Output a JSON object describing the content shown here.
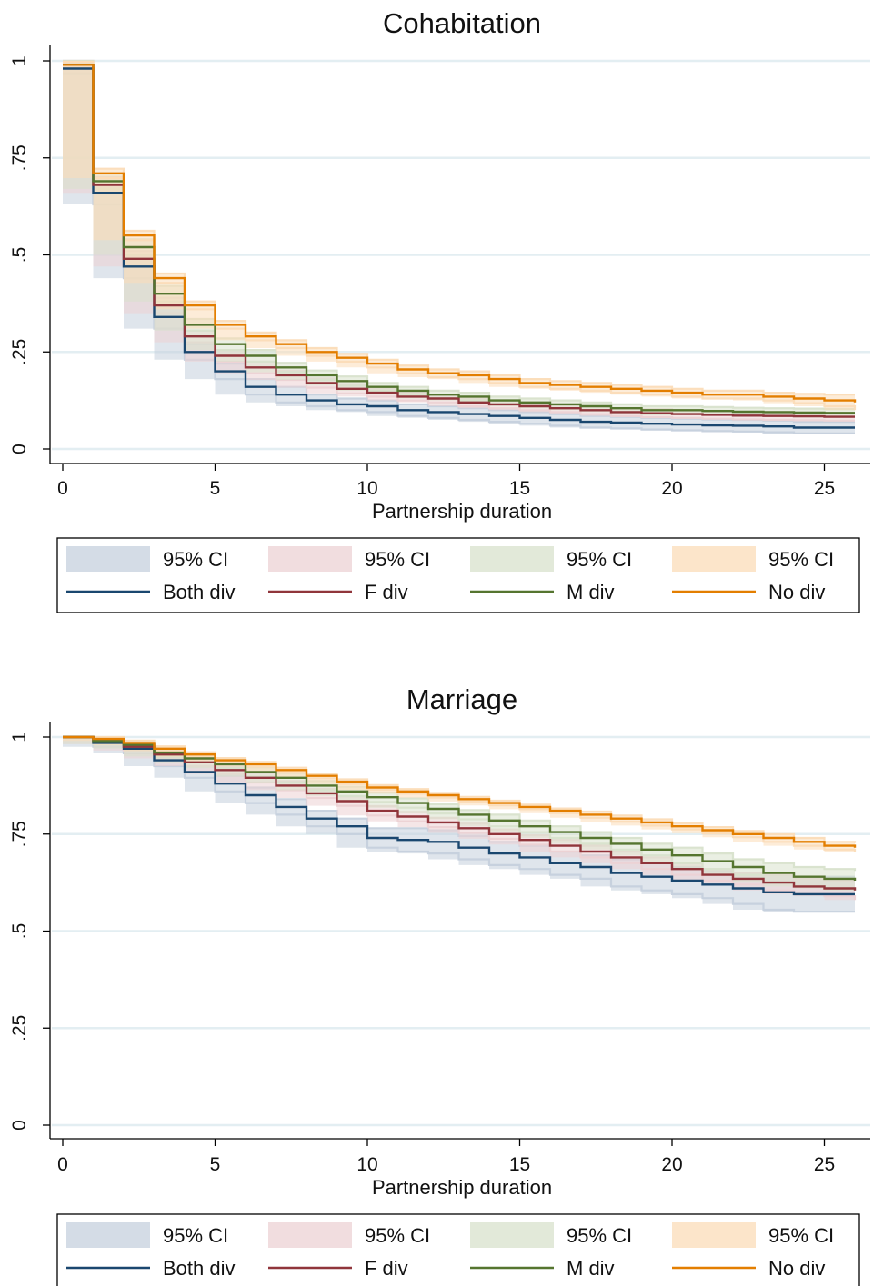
{
  "chart_data": [
    {
      "type": "line",
      "title": "Cohabitation",
      "xlabel": "Partnership duration",
      "ylabel": "",
      "xlim": [
        0,
        26
      ],
      "ylim": [
        0,
        1
      ],
      "xticks": [
        0,
        5,
        10,
        15,
        20,
        25
      ],
      "xtick_labels": [
        "0",
        "5",
        "10",
        "15",
        "20",
        "25"
      ],
      "yticks": [
        0,
        0.25,
        0.5,
        0.75,
        1
      ],
      "ytick_labels": [
        "0",
        ".25",
        ".5",
        ".75",
        "1"
      ],
      "grid": true,
      "legend_position": "bottom",
      "x": [
        0,
        1,
        2,
        3,
        4,
        5,
        6,
        7,
        8,
        9,
        10,
        11,
        12,
        13,
        14,
        15,
        16,
        17,
        18,
        19,
        20,
        21,
        22,
        23,
        24,
        25,
        26
      ],
      "series": [
        {
          "name": "Both div",
          "ci_label": "95% CI",
          "color": "#1a476f",
          "ci_color": "#c5d0dd",
          "values": [
            0.98,
            0.66,
            0.47,
            0.34,
            0.25,
            0.2,
            0.16,
            0.14,
            0.125,
            0.115,
            0.11,
            0.1,
            0.095,
            0.09,
            0.085,
            0.08,
            0.075,
            0.07,
            0.068,
            0.065,
            0.063,
            0.061,
            0.06,
            0.058,
            0.055,
            0.055,
            0.055
          ],
          "ci_width": [
            0.012,
            0.03,
            0.03,
            0.03,
            0.02,
            0.02,
            0.02,
            0.02,
            0.015,
            0.015,
            0.015,
            0.015,
            0.015,
            0.015,
            0.015,
            0.015,
            0.015,
            0.015,
            0.015,
            0.015,
            0.015,
            0.015,
            0.015,
            0.015,
            0.015,
            0.015,
            0.015
          ]
        },
        {
          "name": "F div",
          "ci_label": "95% CI",
          "color": "#90353b",
          "ci_color": "#ecd2d4",
          "values": [
            0.99,
            0.68,
            0.49,
            0.37,
            0.29,
            0.24,
            0.21,
            0.19,
            0.17,
            0.155,
            0.145,
            0.135,
            0.13,
            0.12,
            0.115,
            0.11,
            0.105,
            0.1,
            0.095,
            0.092,
            0.09,
            0.088,
            0.086,
            0.085,
            0.084,
            0.083,
            0.083
          ],
          "ci_width": [
            0.01,
            0.02,
            0.02,
            0.02,
            0.015,
            0.015,
            0.015,
            0.012,
            0.012,
            0.012,
            0.01,
            0.01,
            0.01,
            0.01,
            0.01,
            0.01,
            0.01,
            0.01,
            0.01,
            0.01,
            0.01,
            0.01,
            0.01,
            0.01,
            0.01,
            0.01,
            0.01
          ]
        },
        {
          "name": "M div",
          "ci_label": "95% CI",
          "color": "#55752f",
          "ci_color": "#d8e2cc",
          "values": [
            0.99,
            0.69,
            0.52,
            0.4,
            0.32,
            0.27,
            0.24,
            0.21,
            0.19,
            0.175,
            0.16,
            0.15,
            0.14,
            0.135,
            0.125,
            0.12,
            0.115,
            0.11,
            0.105,
            0.1,
            0.1,
            0.098,
            0.096,
            0.095,
            0.094,
            0.093,
            0.093
          ],
          "ci_width": [
            0.01,
            0.02,
            0.02,
            0.02,
            0.015,
            0.015,
            0.015,
            0.012,
            0.012,
            0.012,
            0.01,
            0.01,
            0.01,
            0.01,
            0.01,
            0.01,
            0.01,
            0.01,
            0.01,
            0.01,
            0.01,
            0.01,
            0.01,
            0.01,
            0.01,
            0.01,
            0.01
          ]
        },
        {
          "name": "No div",
          "ci_label": "95% CI",
          "color": "#e37e00",
          "ci_color": "#fbdcb8",
          "values": [
            0.99,
            0.71,
            0.55,
            0.44,
            0.37,
            0.32,
            0.29,
            0.27,
            0.25,
            0.235,
            0.22,
            0.205,
            0.195,
            0.19,
            0.18,
            0.17,
            0.165,
            0.16,
            0.155,
            0.15,
            0.145,
            0.14,
            0.14,
            0.135,
            0.13,
            0.125,
            0.12
          ],
          "ci_width": [
            0.008,
            0.012,
            0.012,
            0.012,
            0.01,
            0.01,
            0.01,
            0.01,
            0.01,
            0.01,
            0.01,
            0.01,
            0.01,
            0.01,
            0.01,
            0.01,
            0.01,
            0.01,
            0.01,
            0.01,
            0.01,
            0.01,
            0.01,
            0.01,
            0.012,
            0.015,
            0.02
          ]
        }
      ]
    },
    {
      "type": "line",
      "title": "Marriage",
      "xlabel": "Partnership duration",
      "ylabel": "",
      "xlim": [
        0,
        26
      ],
      "ylim": [
        0,
        1
      ],
      "xticks": [
        0,
        5,
        10,
        15,
        20,
        25
      ],
      "xtick_labels": [
        "0",
        "5",
        "10",
        "15",
        "20",
        "25"
      ],
      "yticks": [
        0,
        0.25,
        0.5,
        0.75,
        1
      ],
      "ytick_labels": [
        "0",
        ".25",
        ".5",
        ".75",
        "1"
      ],
      "grid": true,
      "legend_position": "bottom",
      "x": [
        0,
        1,
        2,
        3,
        4,
        5,
        6,
        7,
        8,
        9,
        10,
        11,
        12,
        13,
        14,
        15,
        16,
        17,
        18,
        19,
        20,
        21,
        22,
        23,
        24,
        25,
        26
      ],
      "series": [
        {
          "name": "Both div",
          "ci_label": "95% CI",
          "color": "#1a476f",
          "ci_color": "#c5d0dd",
          "values": [
            1.0,
            0.985,
            0.97,
            0.94,
            0.91,
            0.88,
            0.85,
            0.82,
            0.79,
            0.77,
            0.74,
            0.735,
            0.73,
            0.715,
            0.7,
            0.69,
            0.675,
            0.665,
            0.65,
            0.64,
            0.63,
            0.62,
            0.61,
            0.6,
            0.595,
            0.595,
            0.595
          ],
          "ci_width": [
            0.0,
            0.01,
            0.012,
            0.015,
            0.015,
            0.02,
            0.02,
            0.02,
            0.02,
            0.02,
            0.025,
            0.03,
            0.03,
            0.03,
            0.03,
            0.03,
            0.03,
            0.03,
            0.035,
            0.035,
            0.035,
            0.035,
            0.04,
            0.045,
            0.045,
            0.045,
            0.045
          ]
        },
        {
          "name": "F div",
          "ci_label": "95% CI",
          "color": "#90353b",
          "ci_color": "#ecd2d4",
          "values": [
            1.0,
            0.99,
            0.975,
            0.955,
            0.935,
            0.915,
            0.895,
            0.875,
            0.855,
            0.835,
            0.81,
            0.795,
            0.78,
            0.765,
            0.75,
            0.735,
            0.72,
            0.705,
            0.69,
            0.675,
            0.66,
            0.645,
            0.635,
            0.625,
            0.615,
            0.61,
            0.605
          ],
          "ci_width": [
            0.0,
            0.008,
            0.01,
            0.01,
            0.01,
            0.01,
            0.012,
            0.012,
            0.012,
            0.012,
            0.012,
            0.012,
            0.012,
            0.012,
            0.012,
            0.012,
            0.015,
            0.015,
            0.015,
            0.015,
            0.015,
            0.015,
            0.015,
            0.02,
            0.02,
            0.02,
            0.025
          ]
        },
        {
          "name": "M div",
          "ci_label": "95% CI",
          "color": "#55752f",
          "ci_color": "#d8e2cc",
          "values": [
            1.0,
            0.99,
            0.98,
            0.96,
            0.945,
            0.93,
            0.91,
            0.895,
            0.875,
            0.86,
            0.845,
            0.83,
            0.815,
            0.8,
            0.785,
            0.77,
            0.755,
            0.74,
            0.725,
            0.71,
            0.695,
            0.68,
            0.665,
            0.65,
            0.64,
            0.635,
            0.63
          ],
          "ci_width": [
            0.0,
            0.008,
            0.01,
            0.01,
            0.01,
            0.01,
            0.012,
            0.012,
            0.012,
            0.012,
            0.012,
            0.012,
            0.012,
            0.012,
            0.015,
            0.015,
            0.015,
            0.015,
            0.015,
            0.015,
            0.02,
            0.02,
            0.02,
            0.025,
            0.025,
            0.025,
            0.025
          ]
        },
        {
          "name": "No div",
          "ci_label": "95% CI",
          "color": "#e37e00",
          "ci_color": "#fbdcb8",
          "values": [
            1.0,
            0.995,
            0.985,
            0.97,
            0.955,
            0.94,
            0.93,
            0.915,
            0.9,
            0.885,
            0.87,
            0.86,
            0.85,
            0.84,
            0.83,
            0.82,
            0.81,
            0.8,
            0.79,
            0.78,
            0.77,
            0.76,
            0.75,
            0.74,
            0.73,
            0.72,
            0.715
          ],
          "ci_width": [
            0.0,
            0.005,
            0.006,
            0.006,
            0.006,
            0.006,
            0.006,
            0.006,
            0.006,
            0.006,
            0.006,
            0.006,
            0.006,
            0.006,
            0.006,
            0.006,
            0.006,
            0.008,
            0.008,
            0.008,
            0.008,
            0.008,
            0.008,
            0.01,
            0.01,
            0.01,
            0.012
          ]
        }
      ]
    }
  ]
}
